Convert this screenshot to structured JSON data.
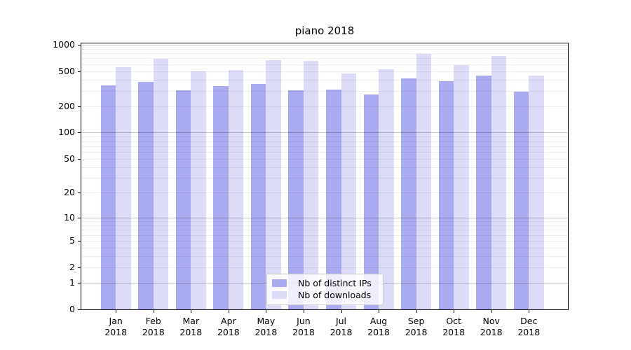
{
  "title": "piano 2018",
  "colors": {
    "bar_ips": "#aaaaf0",
    "bar_downloads": "#dcdcf8",
    "grid_major": "rgba(0,0,0,0.22)",
    "grid_minor": "rgba(0,0,0,0.07)",
    "axis": "#000000",
    "legend_border": "#cccccc"
  },
  "chart_data": {
    "type": "bar",
    "title": "piano 2018",
    "categories": [
      "Jan",
      "Feb",
      "Mar",
      "Apr",
      "May",
      "Jun",
      "Jul",
      "Aug",
      "Sep",
      "Oct",
      "Nov",
      "Dec"
    ],
    "x_year_label": "2018",
    "series": [
      {
        "name": "Nb of distinct IPs",
        "values": [
          346,
          376,
          304,
          337,
          359,
          302,
          310,
          273,
          418,
          386,
          449,
          295
        ]
      },
      {
        "name": "Nb of downloads",
        "values": [
          559,
          691,
          503,
          517,
          671,
          658,
          472,
          529,
          782,
          593,
          748,
          449
        ]
      }
    ],
    "yscale": "symlog-log1p",
    "ylim": [
      0,
      1050
    ],
    "y_ticks": [
      0,
      1,
      2,
      5,
      10,
      20,
      50,
      100,
      200,
      500,
      1000
    ],
    "y_major_gridlines": [
      1,
      10,
      100,
      1000
    ],
    "grid": true,
    "legend_position": "lower center",
    "xlabel": "",
    "ylabel": ""
  }
}
